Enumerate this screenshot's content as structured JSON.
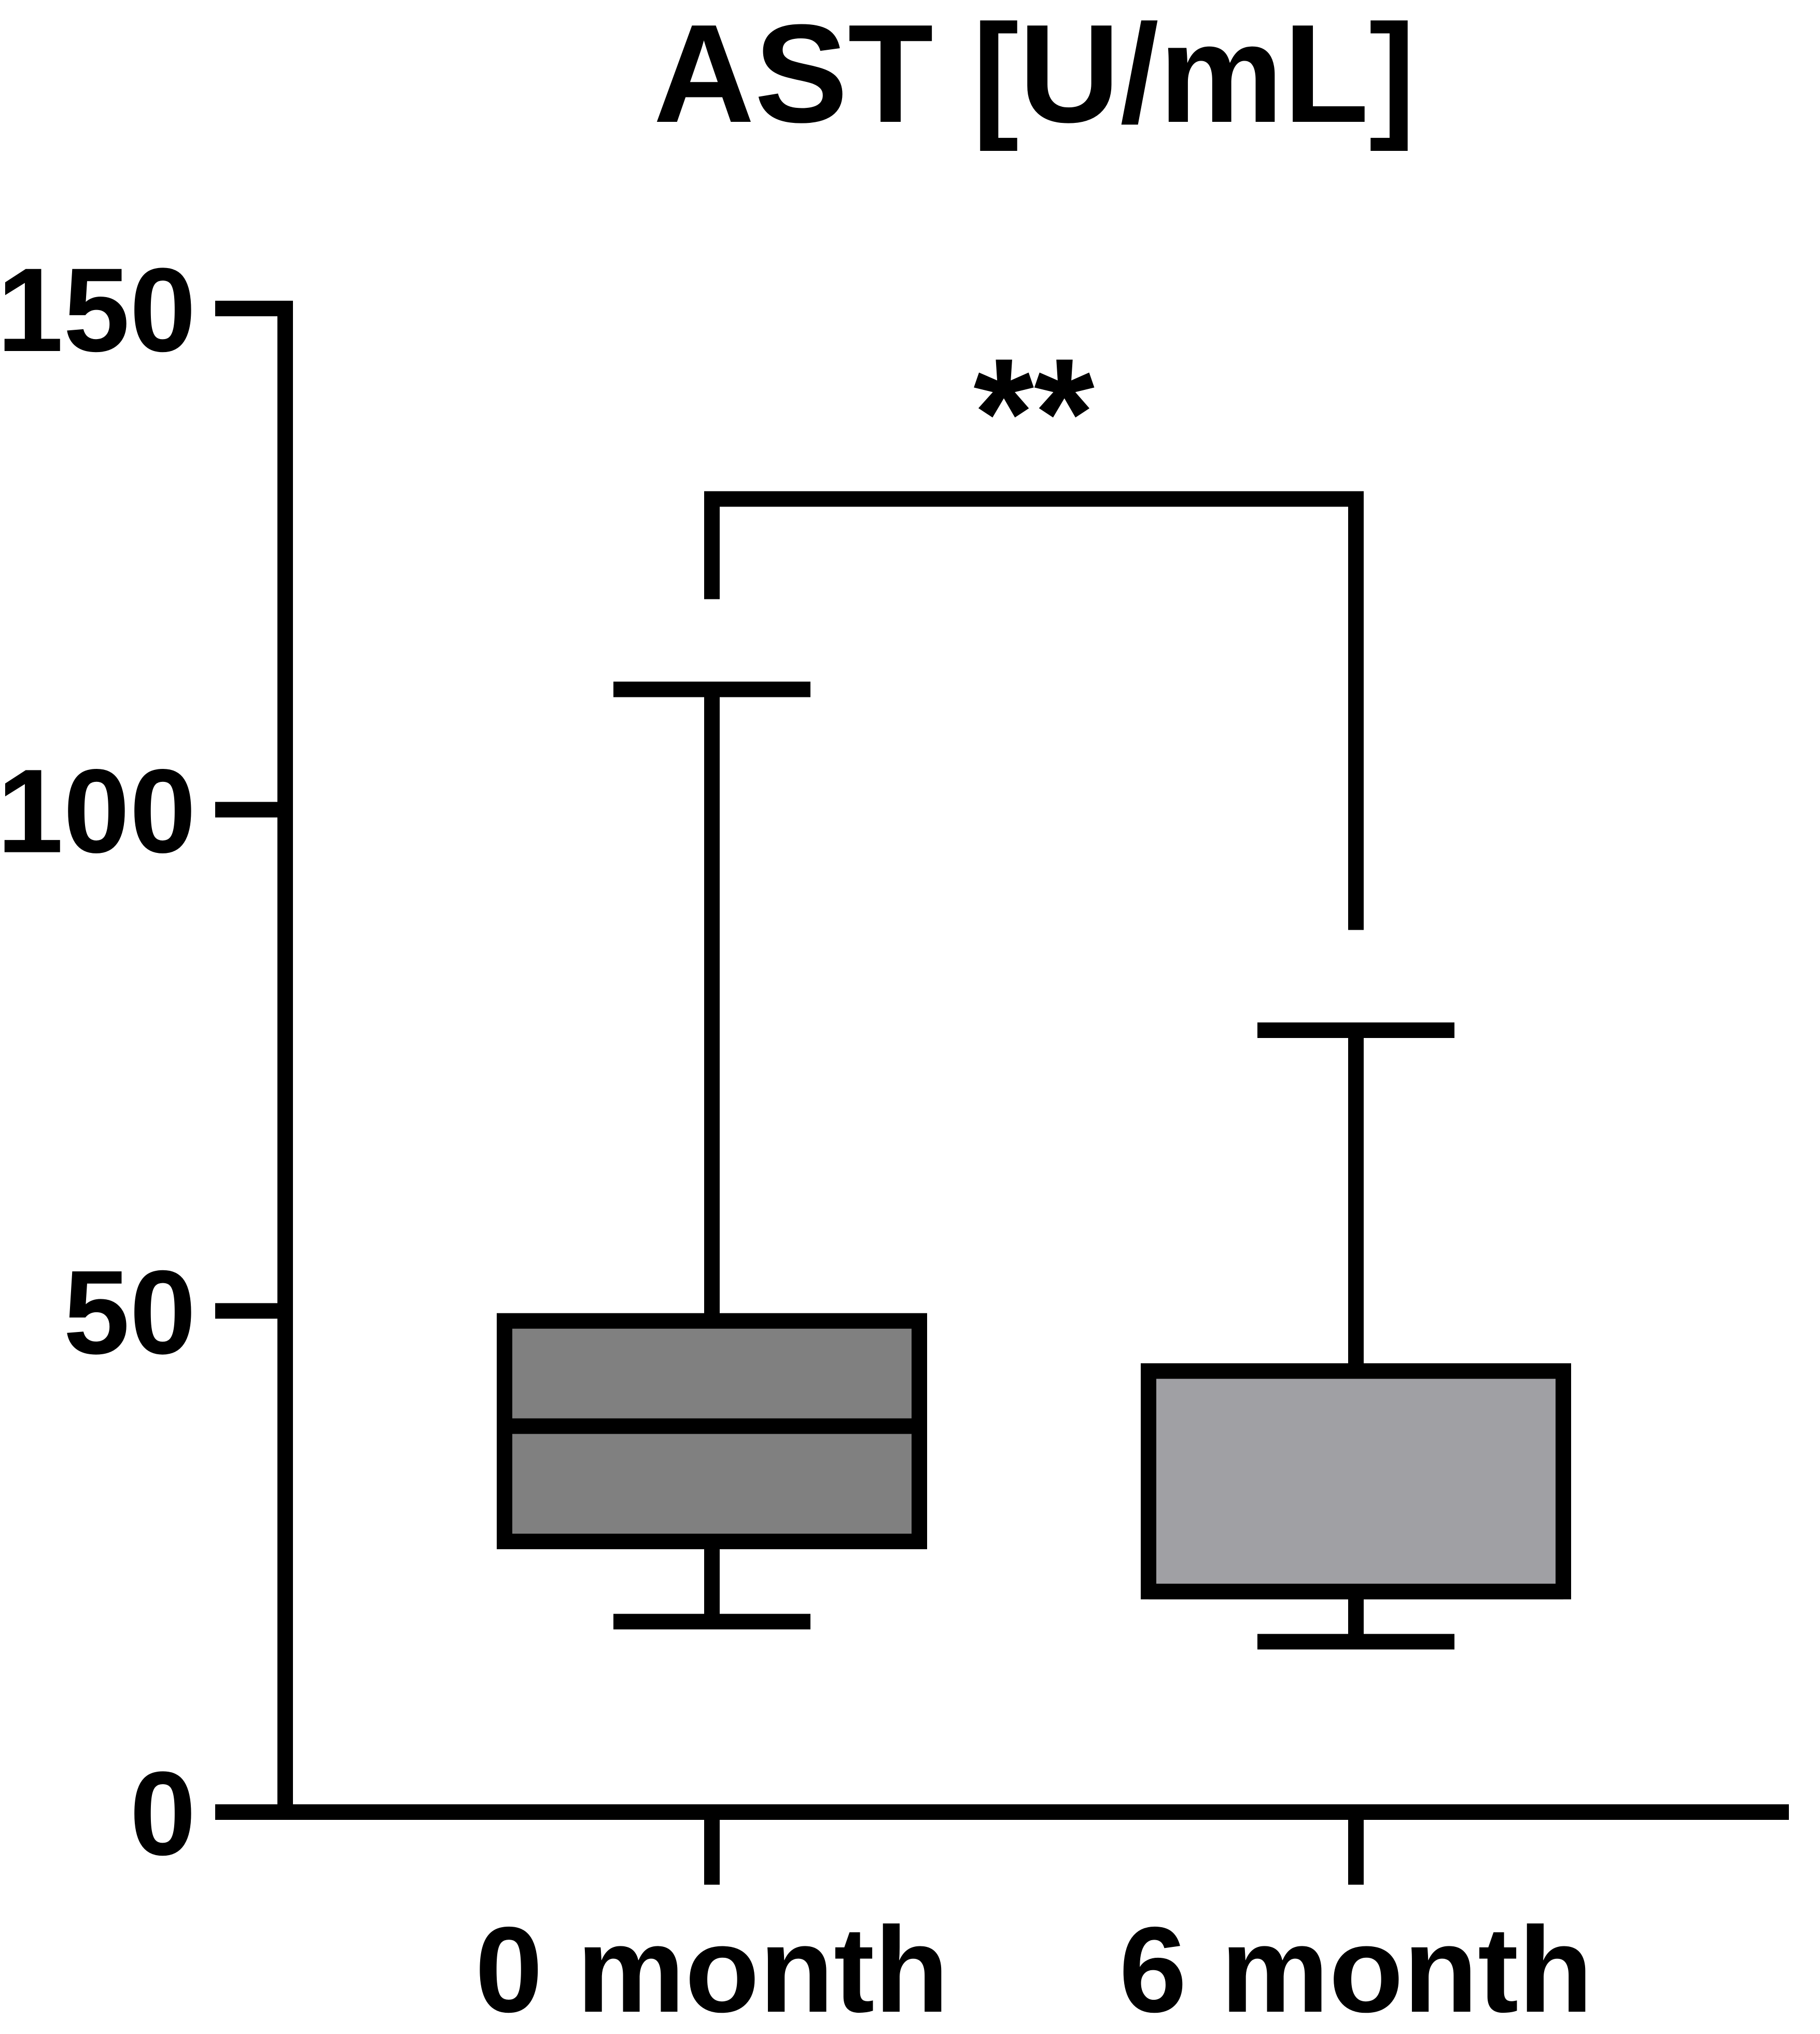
{
  "chart_data": {
    "type": "box",
    "title": "AST [U/mL]",
    "xlabel": "",
    "ylabel": "",
    "ylim": [
      0,
      150
    ],
    "yticks": [
      0,
      50,
      100,
      150
    ],
    "grid": false,
    "legend": "none",
    "categories": [
      "0 month",
      "6 month"
    ],
    "boxes": [
      {
        "category": "0 month",
        "min": 19,
        "q1": 27,
        "median": 38.5,
        "q3": 49,
        "max": 112,
        "fill": "#808080"
      },
      {
        "category": "6 month",
        "min": 17,
        "q1": 22,
        "median": 22,
        "q3": 44,
        "max": 78,
        "fill": "#a0a0a4"
      }
    ],
    "annotations": [
      {
        "type": "significance",
        "from": "0 month",
        "to": "6 month",
        "label": "**",
        "y": 131,
        "left_end": 121,
        "right_end": 88
      }
    ]
  }
}
